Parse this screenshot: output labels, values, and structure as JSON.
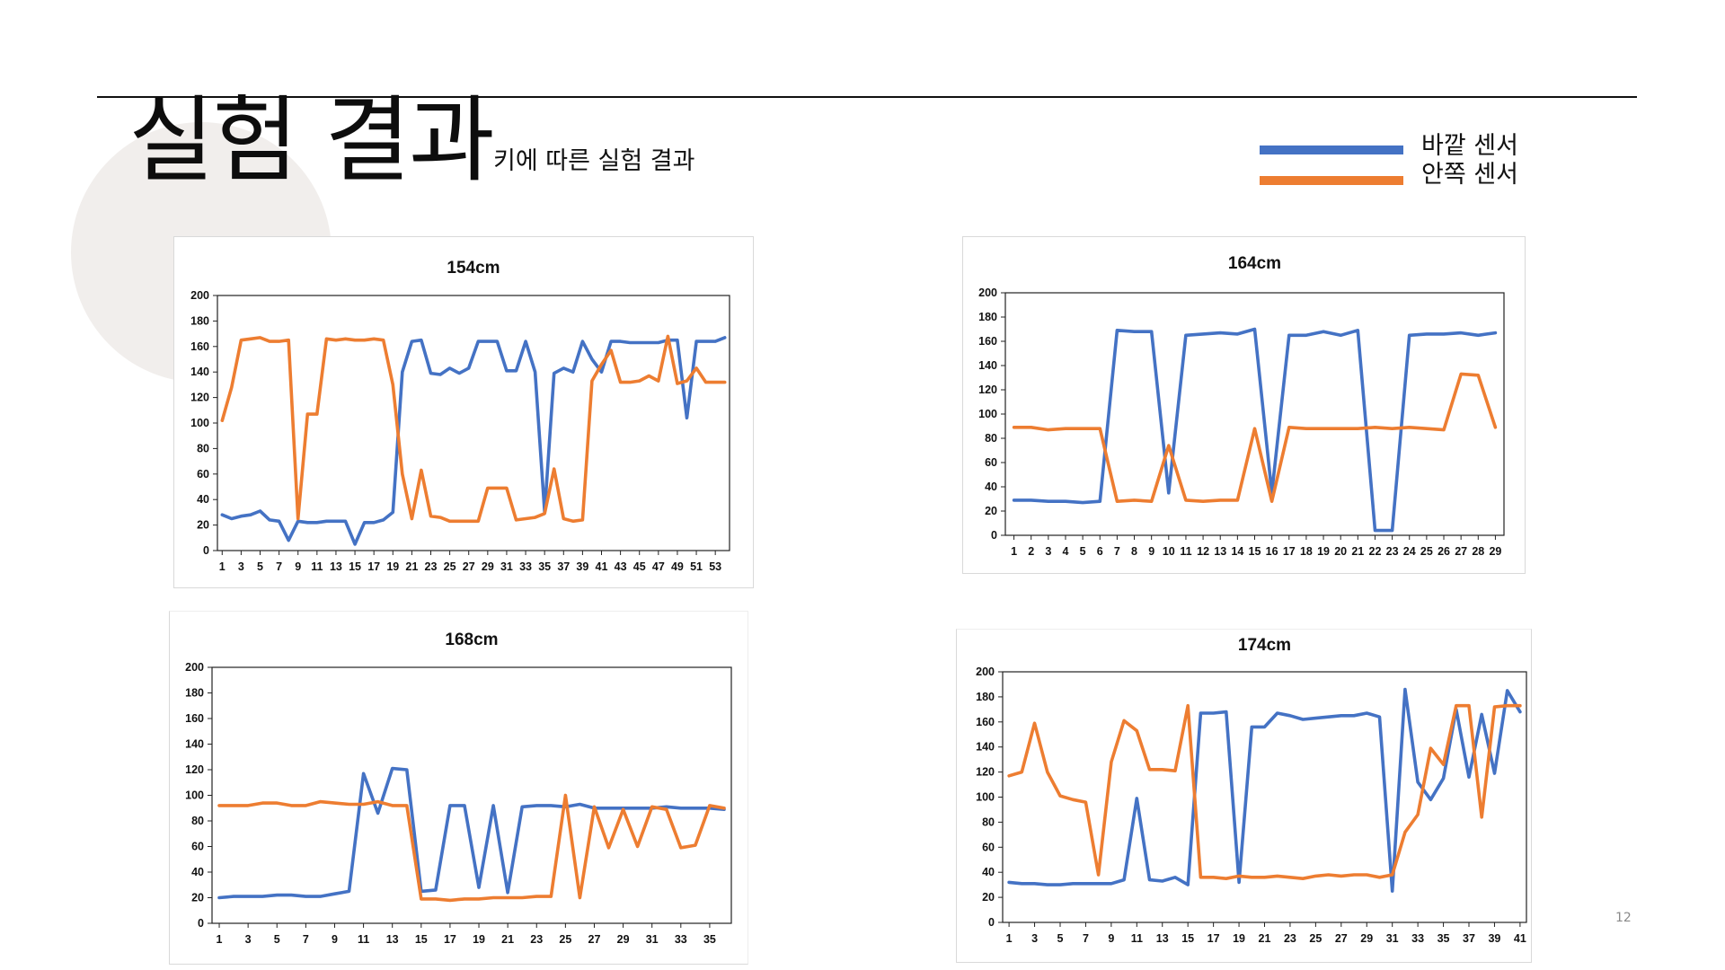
{
  "slide": {
    "title": "실험 결과",
    "subtitle": "키에 따른 실험 결과",
    "page_number": "12"
  },
  "legend": [
    {
      "label": "바깥 센서",
      "color": "#4472c4"
    },
    {
      "label": "안쪽 센서",
      "color": "#ed7d31"
    }
  ],
  "chart_data": [
    {
      "type": "line",
      "title": "154cm",
      "xlabel": "",
      "ylabel": "",
      "ylim": [
        0,
        200
      ],
      "yticks": [
        0,
        20,
        40,
        60,
        80,
        100,
        120,
        140,
        160,
        180,
        200
      ],
      "x": [
        1,
        2,
        3,
        4,
        5,
        6,
        7,
        8,
        9,
        10,
        11,
        12,
        13,
        14,
        15,
        16,
        17,
        18,
        19,
        20,
        21,
        22,
        23,
        24,
        25,
        26,
        27,
        28,
        29,
        30,
        31,
        32,
        33,
        34,
        35,
        36,
        37,
        38,
        39,
        40,
        41,
        42,
        43,
        44,
        45,
        46,
        47,
        48,
        49,
        50,
        51,
        52,
        53,
        54
      ],
      "xtick_labels": [
        "1",
        "3",
        "5",
        "7",
        "9",
        "11",
        "13",
        "15",
        "17",
        "19",
        "21",
        "23",
        "25",
        "27",
        "29",
        "31",
        "33",
        "35",
        "37",
        "39",
        "41",
        "43",
        "45",
        "47",
        "49",
        "51",
        "53"
      ],
      "grid": false,
      "series": [
        {
          "name": "바깥 센서",
          "color": "#4472c4",
          "values": [
            28,
            25,
            27,
            28,
            31,
            24,
            23,
            8,
            23,
            22,
            22,
            23,
            23,
            23,
            5,
            22,
            22,
            24,
            30,
            140,
            164,
            165,
            139,
            138,
            143,
            139,
            143,
            164,
            164,
            164,
            141,
            141,
            164,
            140,
            30,
            139,
            143,
            140,
            164,
            150,
            140,
            164,
            164,
            163,
            163,
            163,
            163,
            165,
            165,
            104,
            164,
            164,
            164,
            167
          ]
        },
        {
          "name": "안쪽 센서",
          "color": "#ed7d31",
          "values": [
            102,
            128,
            165,
            166,
            167,
            164,
            164,
            165,
            25,
            107,
            107,
            166,
            165,
            166,
            165,
            165,
            166,
            165,
            130,
            60,
            25,
            63,
            27,
            26,
            23,
            23,
            23,
            23,
            49,
            49,
            49,
            24,
            25,
            26,
            29,
            64,
            25,
            23,
            24,
            133,
            146,
            157,
            132,
            132,
            133,
            137,
            133,
            168,
            131,
            133,
            143,
            132,
            132,
            132
          ]
        }
      ]
    },
    {
      "type": "line",
      "title": "164cm",
      "xlabel": "",
      "ylabel": "",
      "ylim": [
        0,
        200
      ],
      "yticks": [
        0,
        20,
        40,
        60,
        80,
        100,
        120,
        140,
        160,
        180,
        200
      ],
      "x": [
        1,
        2,
        3,
        4,
        5,
        6,
        7,
        8,
        9,
        10,
        11,
        12,
        13,
        14,
        15,
        16,
        17,
        18,
        19,
        20,
        21,
        22,
        23,
        24,
        25,
        26,
        27,
        28,
        29
      ],
      "xtick_labels": [
        "1",
        "2",
        "3",
        "4",
        "5",
        "6",
        "7",
        "8",
        "9",
        "10",
        "11",
        "12",
        "13",
        "14",
        "15",
        "16",
        "17",
        "18",
        "19",
        "20",
        "21",
        "22",
        "23",
        "24",
        "25",
        "26",
        "27",
        "28",
        "29"
      ],
      "grid": false,
      "series": [
        {
          "name": "바깥 센서",
          "color": "#4472c4",
          "values": [
            29,
            29,
            28,
            28,
            27,
            28,
            169,
            168,
            168,
            35,
            165,
            166,
            167,
            166,
            170,
            35,
            165,
            165,
            168,
            165,
            169,
            4,
            4,
            165,
            166,
            166,
            167,
            165,
            167
          ]
        },
        {
          "name": "안쪽 센서",
          "color": "#ed7d31",
          "values": [
            89,
            89,
            87,
            88,
            88,
            88,
            28,
            29,
            28,
            74,
            29,
            28,
            29,
            29,
            88,
            28,
            89,
            88,
            88,
            88,
            88,
            89,
            88,
            89,
            88,
            87,
            133,
            132,
            89
          ]
        }
      ]
    },
    {
      "type": "line",
      "title": "168cm",
      "xlabel": "",
      "ylabel": "",
      "ylim": [
        0,
        200
      ],
      "yticks": [
        0,
        20,
        40,
        60,
        80,
        100,
        120,
        140,
        160,
        180,
        200
      ],
      "x": [
        1,
        2,
        3,
        4,
        5,
        6,
        7,
        8,
        9,
        10,
        11,
        12,
        13,
        14,
        15,
        16,
        17,
        18,
        19,
        20,
        21,
        22,
        23,
        24,
        25,
        26,
        27,
        28,
        29,
        30,
        31,
        32,
        33,
        34,
        35,
        36
      ],
      "xtick_labels": [
        "1",
        "3",
        "5",
        "7",
        "9",
        "11",
        "13",
        "15",
        "17",
        "19",
        "21",
        "23",
        "25",
        "27",
        "29",
        "31",
        "33",
        "35"
      ],
      "grid": false,
      "series": [
        {
          "name": "바깥 센서",
          "color": "#4472c4",
          "values": [
            20,
            21,
            21,
            21,
            22,
            22,
            21,
            21,
            23,
            25,
            117,
            86,
            121,
            120,
            25,
            26,
            92,
            92,
            28,
            92,
            24,
            91,
            92,
            92,
            91,
            93,
            90,
            90,
            90,
            90,
            90,
            91,
            90,
            90,
            90,
            89
          ]
        },
        {
          "name": "안쪽 센서",
          "color": "#ed7d31",
          "values": [
            92,
            92,
            92,
            94,
            94,
            92,
            92,
            95,
            94,
            93,
            93,
            95,
            92,
            92,
            19,
            19,
            18,
            19,
            19,
            20,
            20,
            20,
            21,
            21,
            100,
            20,
            91,
            59,
            89,
            60,
            91,
            89,
            59,
            61,
            92,
            90
          ]
        }
      ]
    },
    {
      "type": "line",
      "title": "174cm",
      "xlabel": "",
      "ylabel": "",
      "ylim": [
        0,
        200
      ],
      "yticks": [
        0,
        20,
        40,
        60,
        80,
        100,
        120,
        140,
        160,
        180,
        200
      ],
      "x": [
        1,
        2,
        3,
        4,
        5,
        6,
        7,
        8,
        9,
        10,
        11,
        12,
        13,
        14,
        15,
        16,
        17,
        18,
        19,
        20,
        21,
        22,
        23,
        24,
        25,
        26,
        27,
        28,
        29,
        30,
        31,
        32,
        33,
        34,
        35,
        36,
        37,
        38,
        39,
        40,
        41
      ],
      "xtick_labels": [
        "1",
        "3",
        "5",
        "7",
        "9",
        "11",
        "13",
        "15",
        "17",
        "19",
        "21",
        "23",
        "25",
        "27",
        "29",
        "31",
        "33",
        "35",
        "37",
        "39",
        "41"
      ],
      "grid": false,
      "series": [
        {
          "name": "바깥 센서",
          "color": "#4472c4",
          "values": [
            32,
            31,
            31,
            30,
            30,
            31,
            31,
            31,
            31,
            34,
            99,
            34,
            33,
            36,
            30,
            167,
            167,
            168,
            32,
            156,
            156,
            167,
            165,
            162,
            163,
            164,
            165,
            165,
            167,
            164,
            25,
            186,
            112,
            98,
            115,
            170,
            116,
            166,
            119,
            185,
            168
          ]
        },
        {
          "name": "안쪽 센서",
          "color": "#ed7d31",
          "values": [
            117,
            120,
            159,
            120,
            101,
            98,
            96,
            38,
            128,
            161,
            153,
            122,
            122,
            121,
            173,
            36,
            36,
            35,
            37,
            36,
            36,
            37,
            36,
            35,
            37,
            38,
            37,
            38,
            38,
            36,
            38,
            72,
            86,
            139,
            126,
            173,
            173,
            84,
            172,
            173,
            173
          ]
        }
      ]
    }
  ]
}
